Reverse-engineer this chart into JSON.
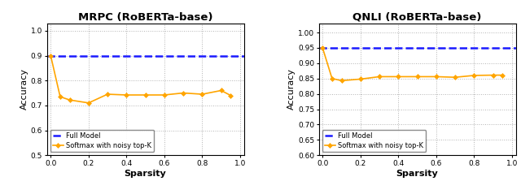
{
  "mrpc": {
    "title": "MRPC (RoBERTa-base)",
    "full_model_accuracy": 0.9,
    "ylim": [
      0.5,
      1.03
    ],
    "yticks": [
      0.5,
      0.6,
      0.7,
      0.8,
      0.9,
      1.0
    ],
    "sparsity": [
      0.0,
      0.05,
      0.1,
      0.2,
      0.3,
      0.4,
      0.5,
      0.6,
      0.7,
      0.8,
      0.9,
      0.95
    ],
    "accuracy": [
      0.9,
      0.735,
      0.722,
      0.71,
      0.745,
      0.742,
      0.742,
      0.742,
      0.75,
      0.745,
      0.76,
      0.74
    ]
  },
  "qnli": {
    "title": "QNLI (RoBERTa-base)",
    "full_model_accuracy": 0.95,
    "ylim": [
      0.6,
      1.03
    ],
    "yticks": [
      0.6,
      0.65,
      0.7,
      0.75,
      0.8,
      0.85,
      0.9,
      0.95,
      1.0
    ],
    "sparsity": [
      0.0,
      0.05,
      0.1,
      0.2,
      0.3,
      0.4,
      0.5,
      0.6,
      0.7,
      0.8,
      0.9,
      0.95
    ],
    "accuracy": [
      0.95,
      0.85,
      0.843,
      0.848,
      0.856,
      0.856,
      0.856,
      0.856,
      0.854,
      0.86,
      0.861,
      0.861
    ]
  },
  "full_model_color": "#1a1aff",
  "line_color": "#FFA500",
  "marker_color": "#FFA500",
  "xlabel": "Sparsity",
  "ylabel": "Accuracy",
  "legend_full_model": "Full Model",
  "legend_line": "Softmax with noisy top-K",
  "xticks": [
    0.0,
    0.2,
    0.4,
    0.6,
    0.8,
    1.0
  ],
  "background_color": "#ffffff"
}
